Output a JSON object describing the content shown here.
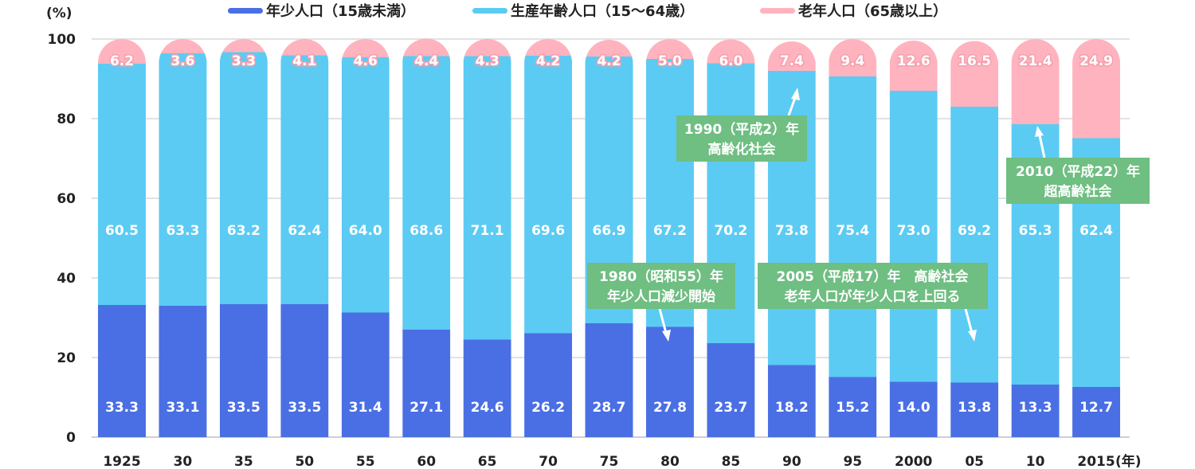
{
  "chart_data": {
    "type": "bar",
    "stacked": true,
    "ylabel": "(%)",
    "xlabel_unit": "(年)",
    "ylim": [
      0,
      100
    ],
    "yticks": [
      0,
      20,
      40,
      60,
      80,
      100
    ],
    "grid": true,
    "legend_position": "top",
    "categories": [
      "1925",
      "30",
      "35",
      "50",
      "55",
      "60",
      "65",
      "70",
      "75",
      "80",
      "85",
      "90",
      "95",
      "2000",
      "05",
      "10",
      "2015"
    ],
    "series": [
      {
        "name": "年少人口（15歳未満）",
        "color": "#4a6fe4",
        "values": [
          33.3,
          33.1,
          33.5,
          33.5,
          31.4,
          27.1,
          24.6,
          26.2,
          28.7,
          27.8,
          23.7,
          18.2,
          15.2,
          14.0,
          13.8,
          13.3,
          12.7
        ]
      },
      {
        "name": "生産年齢人口（15～64歳）",
        "color": "#5bcbf3",
        "values": [
          60.5,
          63.3,
          63.2,
          62.4,
          64.0,
          68.6,
          71.1,
          69.6,
          66.9,
          67.2,
          70.2,
          73.8,
          75.4,
          73.0,
          69.2,
          65.3,
          62.4
        ]
      },
      {
        "name": "老年人口（65歳以上）",
        "color": "#ffb3bf",
        "values": [
          6.2,
          3.6,
          3.3,
          4.1,
          4.6,
          4.4,
          4.3,
          4.2,
          4.2,
          5.0,
          6.0,
          7.4,
          9.4,
          12.6,
          16.5,
          21.4,
          24.9
        ]
      }
    ],
    "annotations": [
      {
        "lines": [
          "1990（平成2）年",
          "高齢化社会"
        ],
        "color": "#6fbe82"
      },
      {
        "lines": [
          "2010（平成22）年",
          "超高齢社会"
        ],
        "color": "#6fbe82"
      },
      {
        "lines": [
          "1980（昭和55）年",
          "年少人口減少開始"
        ],
        "color": "#6fbe82"
      },
      {
        "lines": [
          "2005（平成17）年　高齢社会",
          "老年人口が年少人口を上回る"
        ],
        "color": "#6fbe82"
      }
    ]
  }
}
